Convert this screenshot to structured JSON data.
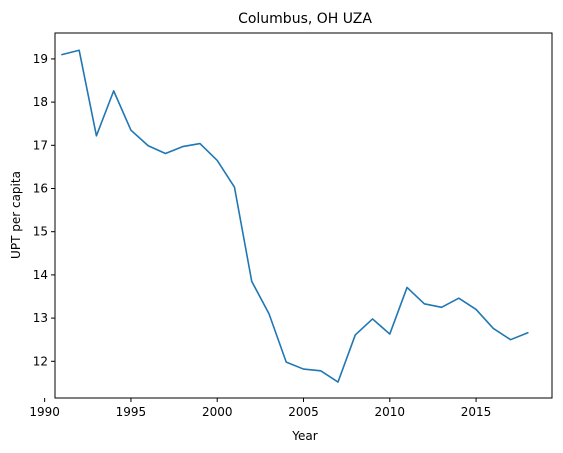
{
  "chart_data": {
    "type": "line",
    "title": "Columbus, OH UZA",
    "xlabel": "Year",
    "ylabel": "UPT per capita",
    "xlim": [
      1990.6,
      2019.4
    ],
    "ylim": [
      11.15,
      19.6
    ],
    "xticks": [
      1990,
      1995,
      2000,
      2005,
      2010,
      2015
    ],
    "yticks": [
      12,
      13,
      14,
      15,
      16,
      17,
      18,
      19
    ],
    "grid": false,
    "colors": {
      "line": "#1f77b4"
    },
    "x": [
      1991,
      1992,
      1993,
      1994,
      1995,
      1996,
      1997,
      1998,
      1999,
      2000,
      2001,
      2002,
      2003,
      2004,
      2005,
      2006,
      2007,
      2008,
      2009,
      2010,
      2011,
      2012,
      2013,
      2014,
      2015,
      2016,
      2017,
      2018
    ],
    "y": [
      19.1,
      19.2,
      17.22,
      18.26,
      17.35,
      16.99,
      16.81,
      16.97,
      17.04,
      16.65,
      16.03,
      13.85,
      13.1,
      11.98,
      11.82,
      11.78,
      11.52,
      12.61,
      12.98,
      12.63,
      13.71,
      13.33,
      13.25,
      13.46,
      13.2,
      12.76,
      12.5,
      12.66
    ]
  }
}
